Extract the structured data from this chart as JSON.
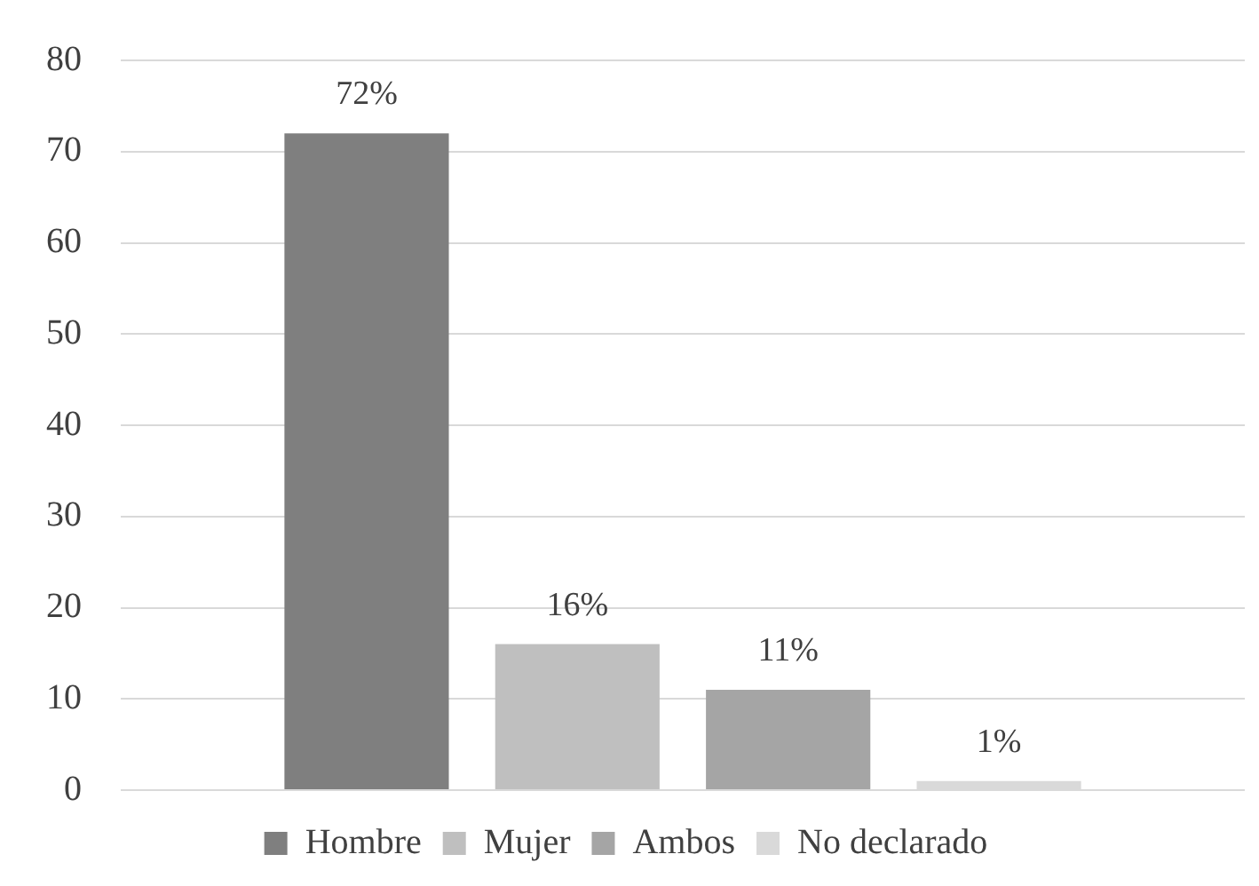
{
  "chart_data": {
    "type": "bar",
    "categories": [
      null
    ],
    "series": [
      {
        "name": "Hombre",
        "color": "#7f7f7f",
        "values": [
          72
        ],
        "value_labels": [
          "72%"
        ]
      },
      {
        "name": "Mujer",
        "color": "#bfbfbf",
        "values": [
          16
        ],
        "value_labels": [
          "16%"
        ]
      },
      {
        "name": "Ambos",
        "color": "#a5a5a5",
        "values": [
          11
        ],
        "value_labels": [
          "11%"
        ]
      },
      {
        "name": "No declarado",
        "color": "#d9d9d9",
        "values": [
          1
        ],
        "value_labels": [
          "1%"
        ]
      }
    ],
    "ylim": [
      0,
      80
    ],
    "yticks": [
      0,
      10,
      20,
      30,
      40,
      50,
      60,
      70,
      80
    ],
    "grid": "y",
    "legend": "bottom"
  }
}
